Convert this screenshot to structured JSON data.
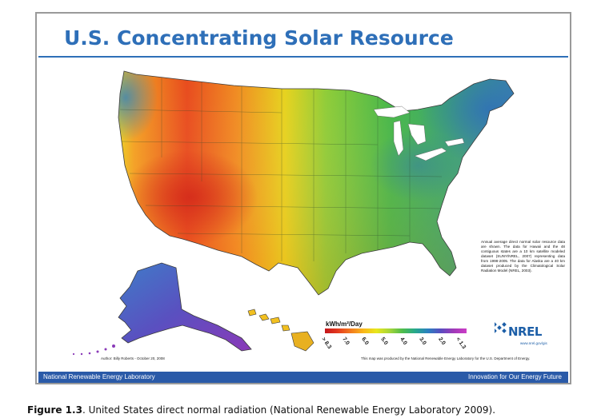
{
  "title": "U.S. Concentrating Solar Resource",
  "map_note": "Annual average direct normal solar resource data are shown. The data for Hawaii and the 48 contiguous states are a 10 km satellite modeled dataset (SUNY/NREL, 2007) representing data from 1998-2005. The data for Alaska are a 40 km dataset produced by the Climatological Solar Radiation Model (NREL, 2003).",
  "colorbar": {
    "title": "kWh/m²/Day",
    "ticks": [
      "> 8.3",
      "7.0",
      "6.0",
      "5.0",
      "4.0",
      "3.0",
      "2.0",
      "< 1.3"
    ]
  },
  "logo": {
    "text": "NREL",
    "url": "www.nrel.gov/gis"
  },
  "author": "Author: Billy Roberts - October 20, 2008",
  "produced_by": "This map was produced by the National Renewable Energy Laboratory for the U.S. Department of Energy.",
  "footer": {
    "left": "National Renewable Energy Laboratory",
    "right": "Innovation for Our Energy Future"
  },
  "caption": {
    "label": "Figure 1.3",
    "text": ". United States direct normal radiation (National Renewable Energy Laboratory 2009)."
  }
}
